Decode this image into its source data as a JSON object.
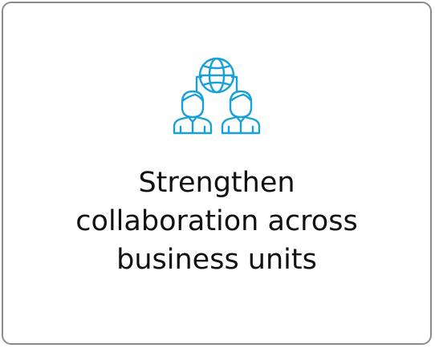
{
  "card": {
    "icon": "global-collaboration-icon",
    "accent_color": "#1aa0d8",
    "title": "Strengthen\ncollaboration across\nbusiness units"
  }
}
